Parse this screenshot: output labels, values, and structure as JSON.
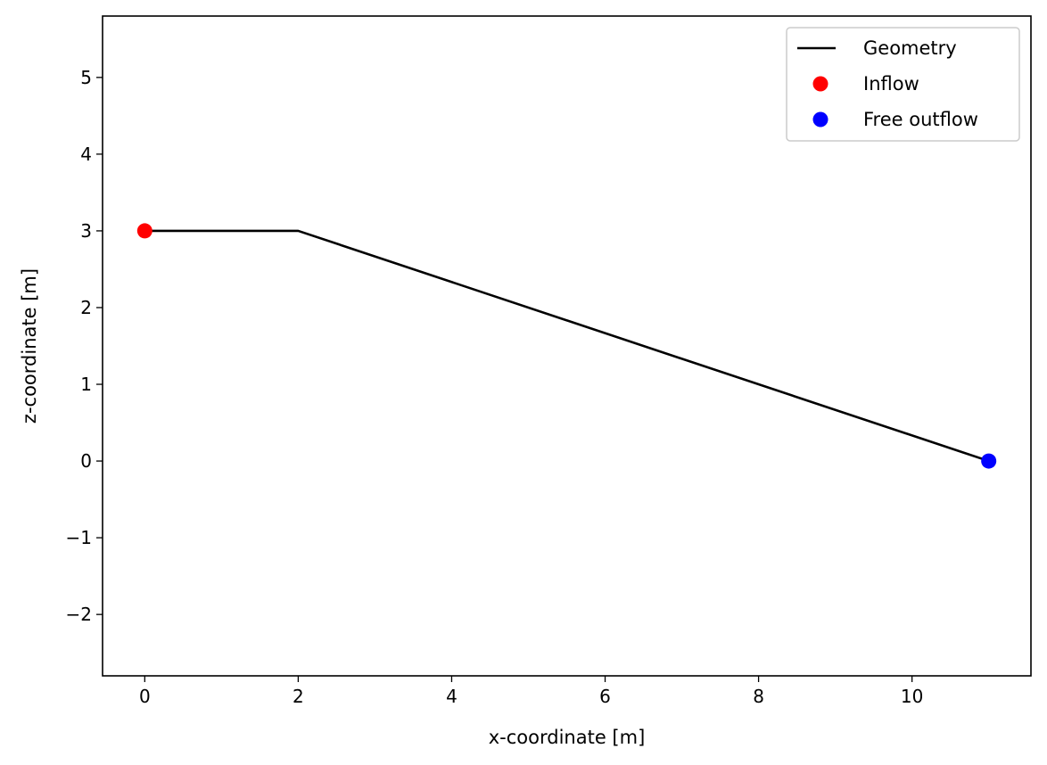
{
  "chart_data": {
    "type": "line",
    "title": "",
    "xlabel": "x-coordinate [m]",
    "ylabel": "z-coordinate [m]",
    "xlim": [
      -0.55,
      11.55
    ],
    "ylim": [
      -2.8,
      5.8
    ],
    "xticks": [
      0,
      2,
      4,
      6,
      8,
      10
    ],
    "yticks": [
      -2,
      -1,
      0,
      1,
      2,
      3,
      4,
      5
    ],
    "xtick_labels": [
      "0",
      "2",
      "4",
      "6",
      "8",
      "10"
    ],
    "ytick_labels": [
      "−2",
      "−1",
      "0",
      "1",
      "2",
      "3",
      "4",
      "5"
    ],
    "grid": false,
    "legend_position": "top-right",
    "series": [
      {
        "name": "Geometry",
        "kind": "line",
        "color": "#000000",
        "x": [
          0,
          2,
          11
        ],
        "y": [
          3,
          3,
          0
        ]
      },
      {
        "name": "Inflow",
        "kind": "marker",
        "color": "#ff0000",
        "x": [
          0
        ],
        "y": [
          3
        ]
      },
      {
        "name": "Free outflow",
        "kind": "marker",
        "color": "#0000ff",
        "x": [
          11
        ],
        "y": [
          0
        ]
      }
    ]
  }
}
